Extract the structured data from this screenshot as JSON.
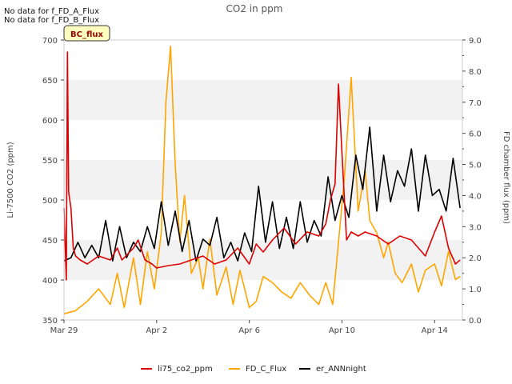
{
  "notes": [
    "No data for f_FD_A_Flux",
    "No data for f_FD_B_Flux"
  ],
  "badge": "BC_flux",
  "colors": {
    "li75_co2_ppm": "#dd0000",
    "FD_C_Flux": "#ffa500",
    "er_ANNnight": "#000000",
    "band": "#f2f2f2",
    "badge_bg": "#ffffc0"
  },
  "chart_data": {
    "type": "line",
    "title": "CO2 in ppm",
    "ylabel_left": "Li-7500 CO2 (ppm)",
    "ylabel_right": "FD chamber flux (ppm)",
    "x_unit": "day offset from Mar 29",
    "xlim": [
      0,
      17.2
    ],
    "ylim_left": [
      350,
      700
    ],
    "ylim_right": [
      0,
      9
    ],
    "x_ticks": [
      {
        "label": "Mar 29",
        "x": 0
      },
      {
        "label": "Apr 2",
        "x": 4
      },
      {
        "label": "Apr 6",
        "x": 8
      },
      {
        "label": "Apr 10",
        "x": 12
      },
      {
        "label": "Apr 14",
        "x": 16
      }
    ],
    "y_ticks_left": [
      350,
      400,
      450,
      500,
      550,
      600,
      650,
      700
    ],
    "y_ticks_right": [
      "0.0",
      "1.0",
      "2.0",
      "3.0",
      "4.0",
      "5.0",
      "6.0",
      "7.0",
      "8.0",
      "9.0"
    ],
    "grid": "shaded bands",
    "legend_position": "bottom",
    "series": [
      {
        "name": "li75_co2_ppm",
        "axis": "left",
        "x": [
          0,
          0.1,
          0.15,
          0.2,
          0.3,
          0.4,
          0.5,
          0.7,
          1,
          1.5,
          2,
          2.3,
          2.5,
          3,
          3.2,
          3.5,
          3.8,
          4,
          4.5,
          5,
          5.5,
          6,
          6.5,
          7,
          7.5,
          8,
          8.3,
          8.6,
          9,
          9.5,
          10,
          10.5,
          11,
          11.3,
          11.5,
          11.7,
          11.85,
          12,
          12.2,
          12.4,
          12.7,
          13,
          13.5,
          14,
          14.5,
          15,
          15.3,
          15.6,
          16,
          16.3,
          16.6,
          16.9,
          17.1
        ],
        "values": [
          490,
          400,
          685,
          510,
          490,
          440,
          430,
          425,
          420,
          430,
          425,
          440,
          425,
          440,
          450,
          425,
          420,
          415,
          418,
          420,
          425,
          430,
          420,
          425,
          440,
          420,
          445,
          435,
          450,
          465,
          445,
          460,
          455,
          470,
          500,
          520,
          645,
          560,
          450,
          460,
          455,
          460,
          455,
          445,
          455,
          450,
          440,
          430,
          460,
          480,
          440,
          420,
          425
        ]
      },
      {
        "name": "FD_C_Flux",
        "axis": "right",
        "x": [
          0,
          0.5,
          1,
          1.5,
          2,
          2.3,
          2.6,
          3,
          3.3,
          3.6,
          3.9,
          4.2,
          4.4,
          4.6,
          4.8,
          5,
          5.2,
          5.5,
          5.8,
          6,
          6.3,
          6.6,
          7,
          7.3,
          7.6,
          8,
          8.3,
          8.6,
          9,
          9.4,
          9.8,
          10.2,
          10.6,
          11,
          11.3,
          11.6,
          11.85,
          12.1,
          12.4,
          12.7,
          13,
          13.2,
          13.5,
          13.8,
          14,
          14.3,
          14.6,
          15,
          15.3,
          15.6,
          16,
          16.3,
          16.6,
          16.9,
          17.1
        ],
        "values": [
          0.2,
          0.3,
          0.6,
          1.0,
          0.5,
          1.5,
          0.4,
          2.0,
          0.5,
          2.2,
          1.0,
          2.8,
          7.0,
          8.8,
          5.0,
          2.5,
          4.0,
          1.5,
          2.0,
          1.0,
          2.6,
          0.8,
          1.7,
          0.5,
          1.6,
          0.4,
          0.6,
          1.4,
          1.2,
          0.9,
          0.7,
          1.2,
          0.8,
          0.5,
          1.2,
          0.5,
          2.5,
          4.5,
          7.8,
          3.5,
          4.8,
          3.2,
          2.8,
          2.0,
          2.5,
          1.5,
          1.2,
          1.8,
          0.9,
          1.6,
          1.8,
          1.1,
          2.2,
          1.3,
          1.4
        ]
      },
      {
        "name": "er_ANNnight",
        "axis": "right",
        "x": [
          0,
          0.3,
          0.6,
          0.9,
          1.2,
          1.5,
          1.8,
          2.1,
          2.4,
          2.7,
          3.0,
          3.3,
          3.6,
          3.9,
          4.2,
          4.5,
          4.8,
          5.1,
          5.4,
          5.7,
          6.0,
          6.3,
          6.6,
          6.9,
          7.2,
          7.5,
          7.8,
          8.1,
          8.4,
          8.7,
          9.0,
          9.3,
          9.6,
          9.9,
          10.2,
          10.5,
          10.8,
          11.1,
          11.4,
          11.7,
          12.0,
          12.3,
          12.6,
          12.9,
          13.2,
          13.5,
          13.8,
          14.1,
          14.4,
          14.7,
          15.0,
          15.3,
          15.6,
          15.9,
          16.2,
          16.5,
          16.8,
          17.1
        ],
        "values": [
          1.9,
          2.0,
          2.5,
          2.0,
          2.4,
          2.0,
          3.2,
          1.9,
          3.0,
          2.0,
          2.5,
          2.2,
          3.0,
          2.3,
          3.8,
          2.4,
          3.5,
          2.2,
          3.2,
          1.9,
          2.6,
          2.4,
          3.3,
          2.0,
          2.5,
          1.9,
          2.8,
          2.2,
          4.3,
          2.5,
          3.8,
          2.3,
          3.3,
          2.3,
          3.8,
          2.5,
          3.2,
          2.7,
          4.6,
          3.2,
          4.0,
          3.3,
          5.3,
          4.2,
          6.2,
          3.5,
          5.3,
          3.8,
          4.8,
          4.3,
          5.5,
          3.5,
          5.3,
          4.0,
          4.2,
          3.5,
          5.2,
          3.6
        ]
      }
    ]
  }
}
